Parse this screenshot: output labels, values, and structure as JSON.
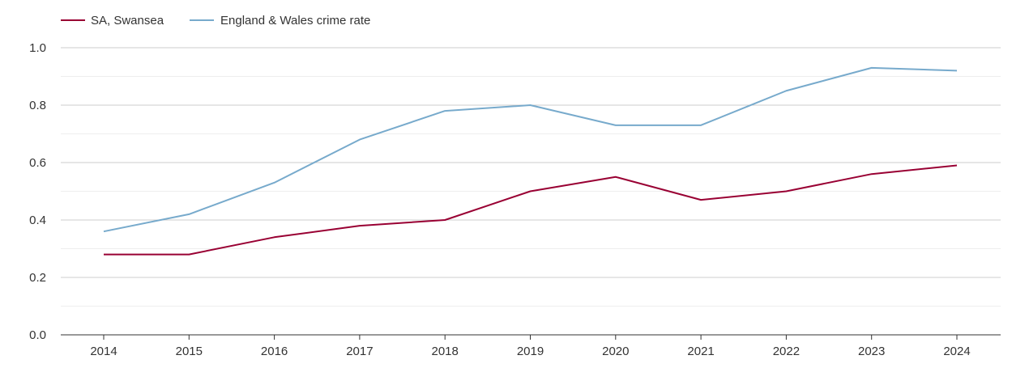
{
  "chart_data": {
    "type": "line",
    "title": "",
    "xlabel": "",
    "ylabel": "",
    "categories": [
      "2014",
      "2015",
      "2016",
      "2017",
      "2018",
      "2019",
      "2020",
      "2021",
      "2022",
      "2023",
      "2024"
    ],
    "ylim": [
      0,
      1.0
    ],
    "yticks": [
      "0.0",
      "0.2",
      "0.4",
      "0.6",
      "0.8",
      "1.0"
    ],
    "grid": true,
    "legend_position": "top-left",
    "series": [
      {
        "name": "SA, Swansea",
        "color": "#990033",
        "values": [
          0.28,
          0.28,
          0.34,
          0.38,
          0.4,
          0.5,
          0.55,
          0.47,
          0.5,
          0.56,
          0.59
        ]
      },
      {
        "name": "England & Wales crime rate",
        "color": "#77aacc",
        "values": [
          0.36,
          0.42,
          0.53,
          0.68,
          0.78,
          0.8,
          0.73,
          0.73,
          0.85,
          0.93,
          0.92
        ]
      }
    ]
  }
}
